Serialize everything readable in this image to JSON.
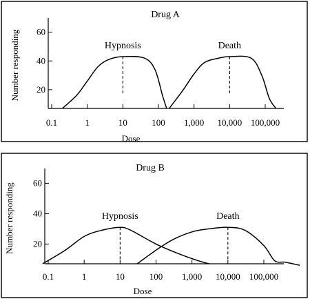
{
  "chart_data": [
    {
      "type": "line",
      "title": "Drug A",
      "xlabel": "Dose",
      "ylabel": "Number responding",
      "x_scale": "log",
      "x_ticks": [
        "0.1",
        "1",
        "10",
        "100",
        "1,000",
        "10,000",
        "100,000"
      ],
      "y_ticks": [
        "20",
        "40",
        "60"
      ],
      "ylim": [
        7,
        67
      ],
      "grid": false,
      "series": [
        {
          "name": "Hypnosis",
          "median_dose": 10,
          "points": [
            [
              0.2,
              7
            ],
            [
              0.5,
              16
            ],
            [
              1,
              26
            ],
            [
              2,
              36
            ],
            [
              4,
              41
            ],
            [
              10,
              43
            ],
            [
              40,
              42
            ],
            [
              80,
              34
            ],
            [
              130,
              16
            ],
            [
              170,
              7
            ]
          ],
          "median_line": [
            10,
            43
          ]
        },
        {
          "name": "Death",
          "median_dose": 10000,
          "points": [
            [
              200,
              7
            ],
            [
              500,
              20
            ],
            [
              1000,
              31
            ],
            [
              2000,
              39
            ],
            [
              5000,
              42
            ],
            [
              10000,
              43
            ],
            [
              40000,
              42
            ],
            [
              80000,
              30
            ],
            [
              130000,
              14
            ],
            [
              200000,
              7
            ]
          ],
          "median_line": [
            10000,
            43
          ]
        }
      ]
    },
    {
      "type": "line",
      "title": "Drug B",
      "xlabel": "Dose",
      "ylabel": "Number responding",
      "x_scale": "log",
      "x_ticks": [
        "0.1",
        "1",
        "10",
        "100",
        "1,000",
        "10,000",
        "100,000"
      ],
      "y_ticks": [
        "20",
        "40",
        "60"
      ],
      "ylim": [
        7,
        67
      ],
      "grid": false,
      "series": [
        {
          "name": "Hypnosis",
          "median_dose": 10,
          "points": [
            [
              0.07,
              7
            ],
            [
              0.3,
              16
            ],
            [
              1,
              25
            ],
            [
              3,
              29
            ],
            [
              10,
              31
            ],
            [
              20,
              29
            ],
            [
              100,
              20
            ],
            [
              500,
              13
            ],
            [
              1500,
              9
            ],
            [
              3000,
              7
            ]
          ],
          "median_line": [
            10,
            31
          ]
        },
        {
          "name": "Death",
          "median_dose": 10000,
          "points": [
            [
              30,
              7
            ],
            [
              100,
              16
            ],
            [
              300,
              23
            ],
            [
              1000,
              28
            ],
            [
              3000,
              30
            ],
            [
              10000,
              31
            ],
            [
              30000,
              29
            ],
            [
              100000,
              19
            ],
            [
              200000,
              9
            ],
            [
              400000,
              8
            ],
            [
              1000000,
              6
            ]
          ],
          "median_line": [
            10000,
            31
          ]
        }
      ]
    }
  ]
}
